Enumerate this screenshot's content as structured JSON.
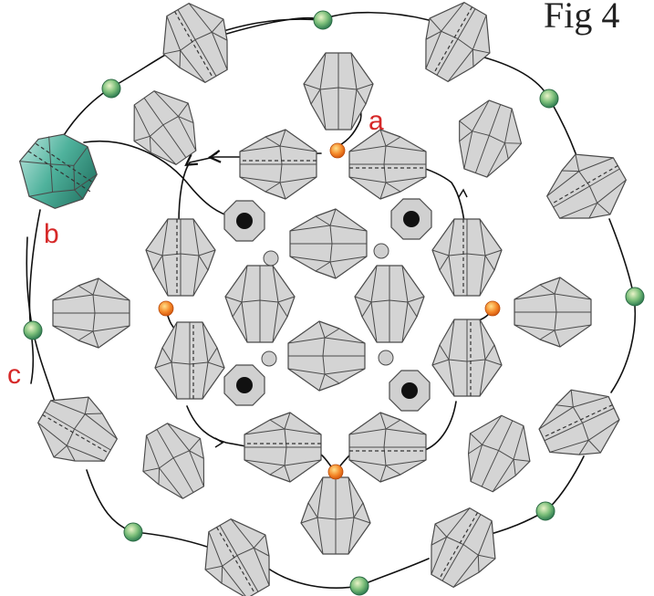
{
  "figure_label": "Fig 4",
  "labels": {
    "a": "a",
    "b": "b",
    "c": "c"
  },
  "colors": {
    "bicone_fill": "#d4d4d4",
    "bicone_stroke": "#4a4a4a",
    "highlight_bicone": "#3aa58e",
    "highlight_bicone_dark": "#1e6f5e",
    "round_bead_green": "#5fae6e",
    "round_bead_orange": "#f07a20",
    "spacer_grey": "#cfcfcf",
    "octagon_fill": "#d0d0d0",
    "octagon_center": "#111111",
    "thread": "#111111",
    "label_red": "#d62828"
  },
  "icons": {
    "bicone": "bicone-crystal-bead-icon",
    "round_bead": "round-seed-bead-icon",
    "octagon": "octagon-spacer-bead-icon",
    "arrow": "thread-direction-arrow-icon"
  }
}
